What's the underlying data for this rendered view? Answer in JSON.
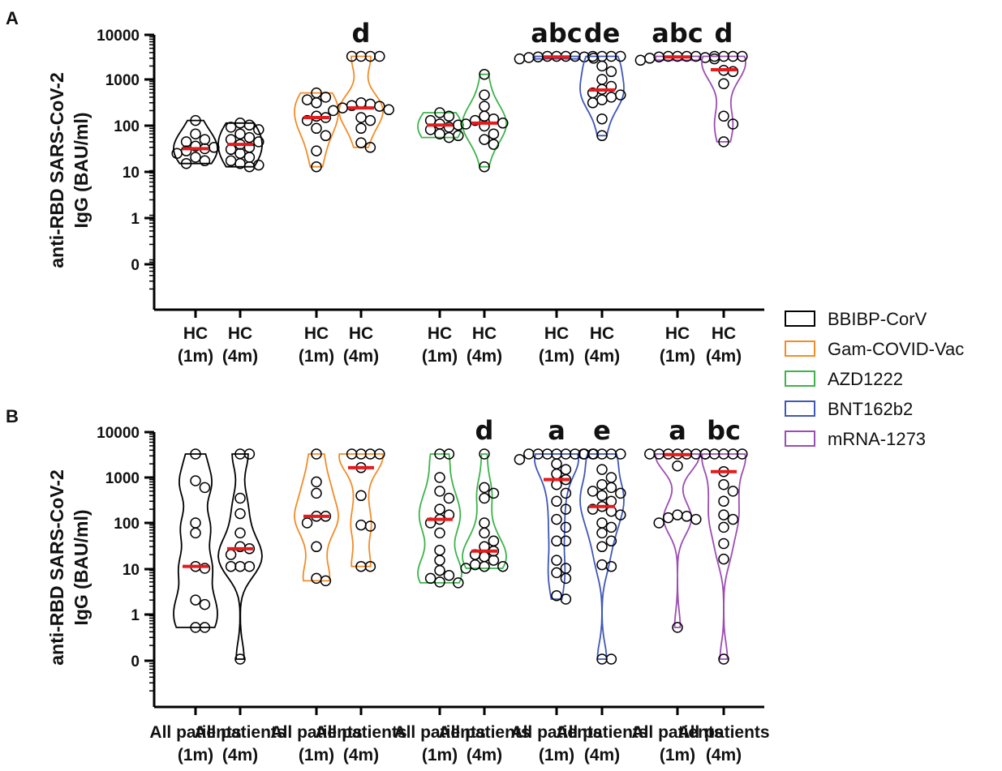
{
  "legend": [
    {
      "name": "BBIBP-CorV",
      "color": "#000000"
    },
    {
      "name": "Gam-COVID-Vac",
      "color": "#F28C28"
    },
    {
      "name": "AZD1222",
      "color": "#3CB44B"
    },
    {
      "name": "BNT162b2",
      "color": "#3F57B8"
    },
    {
      "name": "mRNA-1273",
      "color": "#9B4DB3"
    }
  ],
  "median_color": "#E41A1C",
  "chart_data": [
    {
      "panel": "A",
      "type": "violin",
      "ylabel_lines": [
        "anti-RBD SARS-CoV-2",
        "IgG (BAU/ml)"
      ],
      "yscale": "log",
      "yticks": [
        "10000",
        "1000",
        "100",
        "10",
        "1",
        "0"
      ],
      "groups": [
        {
          "label_lines": [
            "HC",
            "(1m)"
          ],
          "vaccine": "BBIBP-CorV",
          "median": 28,
          "sig": "",
          "values": [
            120,
            60,
            45,
            40,
            32,
            30,
            28,
            25,
            22,
            18,
            15,
            13
          ]
        },
        {
          "label_lines": [
            "HC",
            "(4m)"
          ],
          "vaccine": "BBIBP-CorV",
          "median": 35,
          "sig": "",
          "values": [
            105,
            95,
            85,
            75,
            60,
            50,
            45,
            40,
            35,
            30,
            27,
            22,
            18,
            15,
            13,
            12,
            11
          ]
        },
        {
          "label_lines": [
            "HC",
            "(1m)"
          ],
          "vaccine": "Gam-COVID-Vac",
          "median": 140,
          "sig": "",
          "values": [
            500,
            400,
            350,
            300,
            150,
            140,
            120,
            80,
            55,
            25,
            11
          ]
        },
        {
          "label_lines": [
            "HC",
            "(4m)"
          ],
          "vaccine": "Gam-COVID-Vac",
          "median": 230,
          "sig": "d",
          "values": [
            3300,
            3300,
            3300,
            3300,
            300,
            280,
            260,
            250,
            230,
            210,
            200,
            140,
            120,
            80,
            38,
            30
          ]
        },
        {
          "label_lines": [
            "HC",
            "(1m)"
          ],
          "vaccine": "AZD1222",
          "median": 95,
          "sig": "",
          "values": [
            180,
            150,
            120,
            100,
            95,
            85,
            75,
            60,
            55,
            50
          ]
        },
        {
          "label_lines": [
            "HC",
            "(4m)"
          ],
          "vaccine": "AZD1222",
          "median": 105,
          "sig": "",
          "values": [
            1300,
            450,
            250,
            150,
            130,
            120,
            105,
            100,
            90,
            60,
            45,
            35,
            11
          ]
        },
        {
          "label_lines": [
            "HC",
            "(1m)"
          ],
          "vaccine": "BNT162b2",
          "median": 3200,
          "sig": "abc",
          "values": [
            3300,
            3300,
            3300,
            3300,
            3200,
            3200,
            3100,
            3000,
            2900
          ]
        },
        {
          "label_lines": [
            "HC",
            "(4m)"
          ],
          "vaccine": "BNT162b2",
          "median": 580,
          "sig": "de",
          "values": [
            3300,
            3300,
            3300,
            3300,
            2000,
            1500,
            1000,
            700,
            600,
            500,
            450,
            400,
            350,
            300,
            130,
            55
          ]
        },
        {
          "label_lines": [
            "HC",
            "(1m)"
          ],
          "vaccine": "mRNA-1273",
          "median": 3200,
          "sig": "abc",
          "values": [
            3300,
            3300,
            3300,
            3300,
            3200,
            3100,
            3000,
            2900,
            2700
          ]
        },
        {
          "label_lines": [
            "HC",
            "(4m)"
          ],
          "vaccine": "mRNA-1273",
          "median": 1650,
          "sig": "d",
          "values": [
            3300,
            3300,
            3300,
            3300,
            1600,
            1500,
            800,
            150,
            100,
            40
          ]
        }
      ]
    },
    {
      "panel": "B",
      "type": "violin",
      "ylabel_lines": [
        "anti-RBD SARS-CoV-2",
        "IgG (BAU/ml)"
      ],
      "yscale": "log",
      "yticks": [
        "10000",
        "1000",
        "100",
        "10",
        "1",
        "0"
      ],
      "groups": [
        {
          "label_lines": [
            "All patients",
            "(1m)"
          ],
          "vaccine": "BBIBP-CorV",
          "median": 11,
          "sig": "",
          "values": [
            3300,
            850,
            600,
            100,
            60,
            11,
            10,
            2.0,
            1.6,
            0.5,
            0.5
          ]
        },
        {
          "label_lines": [
            "All patients",
            "(4m)"
          ],
          "vaccine": "BBIBP-CorV",
          "median": 27,
          "sig": "",
          "values": [
            3300,
            3300,
            350,
            160,
            60,
            30,
            27,
            20,
            11,
            11,
            11,
            0.1
          ]
        },
        {
          "label_lines": [
            "All patients",
            "(1m)"
          ],
          "vaccine": "Gam-COVID-Vac",
          "median": 140,
          "sig": "",
          "values": [
            3300,
            800,
            450,
            140,
            140,
            100,
            30,
            6,
            5.3
          ]
        },
        {
          "label_lines": [
            "All patients",
            "(4m)"
          ],
          "vaccine": "Gam-COVID-Vac",
          "median": 1650,
          "sig": "",
          "values": [
            3300,
            3300,
            3300,
            3300,
            1650,
            400,
            90,
            85,
            11,
            11
          ]
        },
        {
          "label_lines": [
            "All patients",
            "(1m)"
          ],
          "vaccine": "AZD1222",
          "median": 120,
          "sig": "",
          "values": [
            3300,
            3300,
            1000,
            500,
            350,
            200,
            150,
            120,
            100,
            60,
            25,
            15,
            9,
            7,
            6,
            5,
            4.8
          ]
        },
        {
          "label_lines": [
            "All patients",
            "(4m)"
          ],
          "vaccine": "AZD1222",
          "median": 24,
          "sig": "d",
          "values": [
            3300,
            600,
            450,
            350,
            100,
            60,
            40,
            30,
            24,
            20,
            18,
            15,
            12,
            11,
            11,
            10
          ]
        },
        {
          "label_lines": [
            "All patients",
            "(1m)"
          ],
          "vaccine": "BNT162b2",
          "median": 900,
          "sig": "a",
          "values": [
            3300,
            3300,
            3300,
            3300,
            3300,
            3300,
            3300,
            3300,
            2500,
            2000,
            1500,
            1200,
            900,
            700,
            450,
            300,
            200,
            120,
            80,
            40,
            40,
            15,
            10,
            8,
            6,
            2.5,
            2.1
          ]
        },
        {
          "label_lines": [
            "All patients",
            "(4m)"
          ],
          "vaccine": "BNT162b2",
          "median": 230,
          "sig": "e",
          "values": [
            3300,
            3300,
            3300,
            3300,
            3300,
            1500,
            1000,
            700,
            600,
            500,
            450,
            400,
            300,
            230,
            200,
            180,
            150,
            100,
            80,
            60,
            40,
            30,
            12,
            11,
            0.1,
            0.1
          ]
        },
        {
          "label_lines": [
            "All patients",
            "(1m)"
          ],
          "vaccine": "mRNA-1273",
          "median": 3200,
          "sig": "a",
          "values": [
            3300,
            3300,
            3300,
            3300,
            3300,
            3300,
            3300,
            1800,
            150,
            140,
            130,
            120,
            100,
            0.5
          ]
        },
        {
          "label_lines": [
            "All patients",
            "(4m)"
          ],
          "vaccine": "mRNA-1273",
          "median": 1350,
          "sig": "bc",
          "values": [
            3300,
            3300,
            3300,
            3300,
            3300,
            1350,
            700,
            500,
            300,
            150,
            120,
            80,
            35,
            16,
            0.1
          ]
        }
      ]
    }
  ]
}
